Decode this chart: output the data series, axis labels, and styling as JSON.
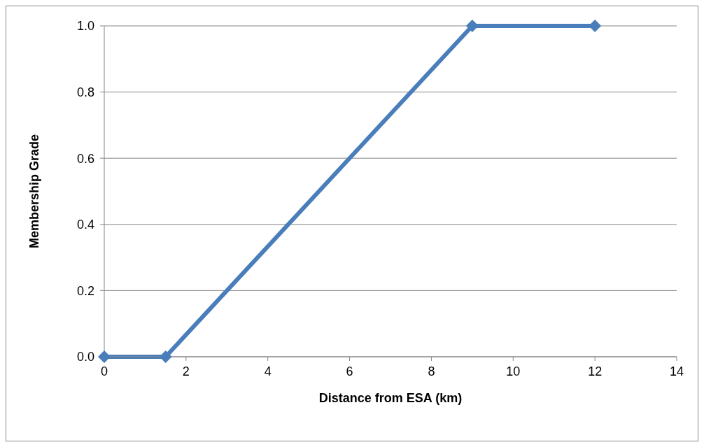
{
  "chart_data": {
    "type": "line",
    "xlabel": "Distance from ESA (km)",
    "ylabel": "Membership Grade",
    "x": [
      0,
      1.5,
      9,
      12
    ],
    "series": [
      {
        "color": "#4a7ebb",
        "values": [
          0,
          0,
          1,
          1
        ]
      }
    ],
    "xlim": [
      0,
      14
    ],
    "xticks": [
      0,
      2,
      4,
      6,
      8,
      10,
      12,
      14
    ],
    "ylim": [
      0,
      1
    ],
    "yticks": [
      {
        "value": 0,
        "label": "0.0"
      },
      {
        "value": 0.2,
        "label": "0.2"
      },
      {
        "value": 0.4,
        "label": "0.4"
      },
      {
        "value": 0.6,
        "label": "0.6"
      },
      {
        "value": 0.8,
        "label": "0.8"
      },
      {
        "value": 1,
        "label": "1.0"
      }
    ],
    "grid": "y",
    "marker": "diamond",
    "line_style": "solid"
  }
}
